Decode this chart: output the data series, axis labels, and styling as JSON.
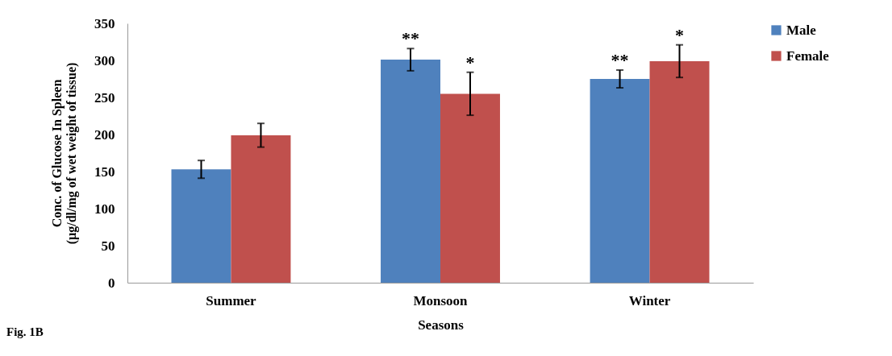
{
  "chart_data": {
    "type": "bar",
    "xlabel": "Seasons",
    "ylabel": "Conc. of Glucose In Spleen\n(µg/dl/mg of wet weight of tissue)",
    "categories": [
      "Summer",
      "Monsoon",
      "Winter"
    ],
    "series": [
      {
        "name": "Male",
        "color": "#4f81bd",
        "values": [
          153,
          301,
          275
        ],
        "errors": [
          12,
          15,
          12
        ]
      },
      {
        "name": "Female",
        "color": "#c0504d",
        "values": [
          199,
          255,
          299
        ],
        "errors": [
          16,
          29,
          22
        ]
      }
    ],
    "ylim": [
      0,
      350
    ],
    "yticks": [
      0,
      50,
      100,
      150,
      200,
      250,
      300,
      350
    ],
    "grid": false,
    "legend": "right",
    "annotations": [
      {
        "text": "**",
        "x": "Monsoon",
        "y": 301
      },
      {
        "text": "*",
        "x": "Monsoon",
        "y": 255
      },
      {
        "text": "**",
        "x": "Winter",
        "y": 275
      },
      {
        "text": "*",
        "x": "Winter",
        "y": 299
      },
      "Fig. 1B"
    ]
  }
}
